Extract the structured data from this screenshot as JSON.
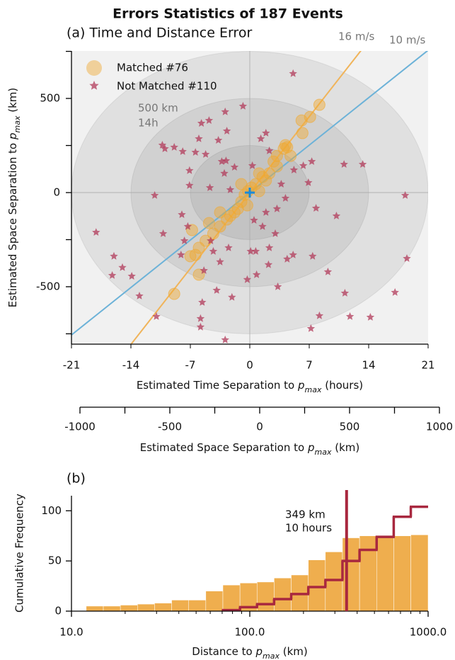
{
  "title": "Errors Statistics of 187 Events",
  "chart_data": [
    {
      "type": "scatter",
      "title": "(a) Time and Distance Error",
      "xlabel": [
        "Estimated Time Separation to ",
        "p",
        "max",
        " (hours)"
      ],
      "ylabel": [
        "Estimated Space Separation to ",
        "p",
        "max",
        " (km)"
      ],
      "xlim": [
        -21,
        21
      ],
      "xticks": [
        -21,
        -14,
        -7,
        0,
        7,
        14,
        21
      ],
      "ylim": [
        -805,
        752
      ],
      "yticks": [
        -500,
        0,
        500
      ],
      "yminorticks": [
        -750,
        -250,
        250,
        750
      ],
      "x2label": [
        "Estimated Space Separation to ",
        "p",
        "max",
        " (km)"
      ],
      "x2lim": [
        -1000,
        1000
      ],
      "x2ticks": [
        -1000,
        -500,
        0,
        500,
        1000
      ],
      "x2minorticks": [
        -750,
        -250,
        250,
        750
      ],
      "ellipses": [
        {
          "x": 7,
          "y": 250
        },
        {
          "x": 14,
          "y": 500
        },
        {
          "x": 21,
          "y": 750
        }
      ],
      "ellipse_labels": [
        "500 km",
        "14h"
      ],
      "speed_lines": [
        {
          "label": "16 m/s",
          "value": 16,
          "color": "#f0b45a"
        },
        {
          "label": "10 m/s",
          "value": 10,
          "color": "#6cb2d8"
        }
      ],
      "legend": "upper left",
      "series": [
        {
          "name": "Matched #76",
          "marker": "circle",
          "color": "#f0a830",
          "x": [
            8.2,
            7.1,
            6.1,
            6.2,
            4.2,
            4.0,
            3.2,
            2.8,
            3.2,
            1.9,
            1.1,
            0.7,
            0.2,
            -0.6,
            -1.0,
            -1.4,
            -1.8,
            -2.7,
            -3.5,
            -4.3,
            -5.2,
            -6.0,
            -6.4,
            -7.0,
            -6.0,
            -8.9,
            -6.8,
            -3.5,
            -4.8,
            4.4,
            4.8,
            2.3,
            -0.2,
            -0.3,
            -2.3,
            1.5,
            -1.0,
            1.1
          ],
          "y": [
            466,
            402,
            383,
            316,
            252,
            233,
            195,
            165,
            139,
            64,
            102,
            45,
            26,
            -11,
            -49,
            -86,
            -105,
            -143,
            -180,
            -218,
            -256,
            -293,
            -331,
            -338,
            -436,
            -538,
            -199,
            -105,
            -162,
            241,
            195,
            102,
            8,
            -68,
            -124,
            83,
            45,
            8
          ]
        },
        {
          "name": "Not Matched #110",
          "marker": "star",
          "color": "#b23a5a",
          "x": [
            5.1,
            -0.8,
            -2.9,
            -4.8,
            1.9,
            1.3,
            -3.7,
            -6.0,
            -10.0,
            -8.9,
            -7.9,
            -6.4,
            -5.2,
            -3.3,
            -1.8,
            -7.1,
            -3.0,
            -7.1,
            -4.7,
            -2.3,
            3.7,
            4.2,
            3.2,
            1.9,
            0.5,
            1.5,
            3.0,
            2.3,
            0.7,
            -2.5,
            -4.3,
            -4.6,
            -3.5,
            -7.7,
            -8.1,
            -10.2,
            -16.0,
            -15.0,
            -13.9,
            -16.2,
            -13.0,
            -11.0,
            -5.8,
            -5.8,
            -5.6,
            -3.9,
            -2.1,
            -2.9,
            -0.3,
            0.8,
            2.2,
            4.4,
            5.1,
            7.4,
            9.2,
            11.2,
            11.8,
            8.2,
            7.2,
            14.2,
            17.1,
            18.5,
            18.3,
            10.2,
            7.8,
            11.1,
            13.3,
            7.3,
            6.9,
            6.3,
            5.2,
            2.3,
            -18.1,
            -10.3,
            -5.7,
            3.3,
            0.3,
            -2.8,
            -2.7,
            -8.0,
            -11.2,
            -7.3,
            -5.4,
            0.1
          ],
          "y": [
            632,
            459,
            429,
            383,
            316,
            286,
            278,
            286,
            233,
            241,
            218,
            214,
            203,
            165,
            135,
            117,
            102,
            38,
            26,
            15,
            45,
            -30,
            -86,
            -105,
            -147,
            -180,
            -218,
            -293,
            -312,
            -293,
            -312,
            -256,
            -368,
            -256,
            -331,
            -218,
            -338,
            -398,
            -444,
            -440,
            -549,
            -658,
            -669,
            -714,
            -583,
            -519,
            -556,
            -782,
            -462,
            -436,
            -383,
            -353,
            -331,
            -338,
            -421,
            -534,
            -658,
            -654,
            -722,
            -662,
            -530,
            -350,
            -15,
            -124,
            -83,
            150,
            150,
            165,
            53,
            143,
            120,
            222,
            -211,
            252,
            368,
            -500,
            143,
            169,
            327,
            -117,
            -15,
            -180,
            -414,
            -312
          ]
        }
      ]
    },
    {
      "type": "histogram",
      "title": "(b)",
      "xlabel": [
        "Distance to ",
        "p",
        "max",
        " (km)"
      ],
      "ylabel": "Cumulative Frequency",
      "xscale": "log",
      "xlim": [
        10,
        1000
      ],
      "xticks": [
        {
          "value": 10,
          "label": "10.0"
        },
        {
          "value": 100,
          "label": "100.0"
        },
        {
          "value": 1000,
          "label": "1000.0"
        }
      ],
      "xminorticks": [
        20,
        30,
        40,
        50,
        60,
        70,
        80,
        90,
        200,
        300,
        400,
        500,
        600,
        700,
        800,
        900
      ],
      "ylim": [
        0,
        115
      ],
      "yticks": [
        0,
        50,
        100
      ],
      "bins": [
        12.1,
        15.09,
        18.81,
        23.45,
        29.24,
        36.46,
        45.45,
        56.67,
        70.66,
        88.1,
        109.8,
        136.9,
        170.7,
        212.9,
        265.4,
        330.9,
        412.6,
        514.4,
        641.4,
        799.7,
        1000
      ],
      "series": [
        {
          "style": "bar",
          "color": "#efae4e",
          "values": [
            5,
            5,
            6,
            7,
            8,
            11,
            11,
            20,
            26,
            28,
            29,
            33,
            36,
            51,
            59,
            73,
            75,
            75,
            75,
            76
          ]
        },
        {
          "style": "step",
          "color": "#a8283f",
          "values": [
            null,
            null,
            null,
            null,
            null,
            null,
            null,
            null,
            1,
            4,
            7,
            12,
            17,
            24,
            31,
            50,
            61,
            74,
            94,
            104
          ]
        }
      ],
      "vline": {
        "value": 349,
        "color": "#a8283f",
        "labels": [
          "349 km",
          "10 hours"
        ]
      }
    }
  ]
}
